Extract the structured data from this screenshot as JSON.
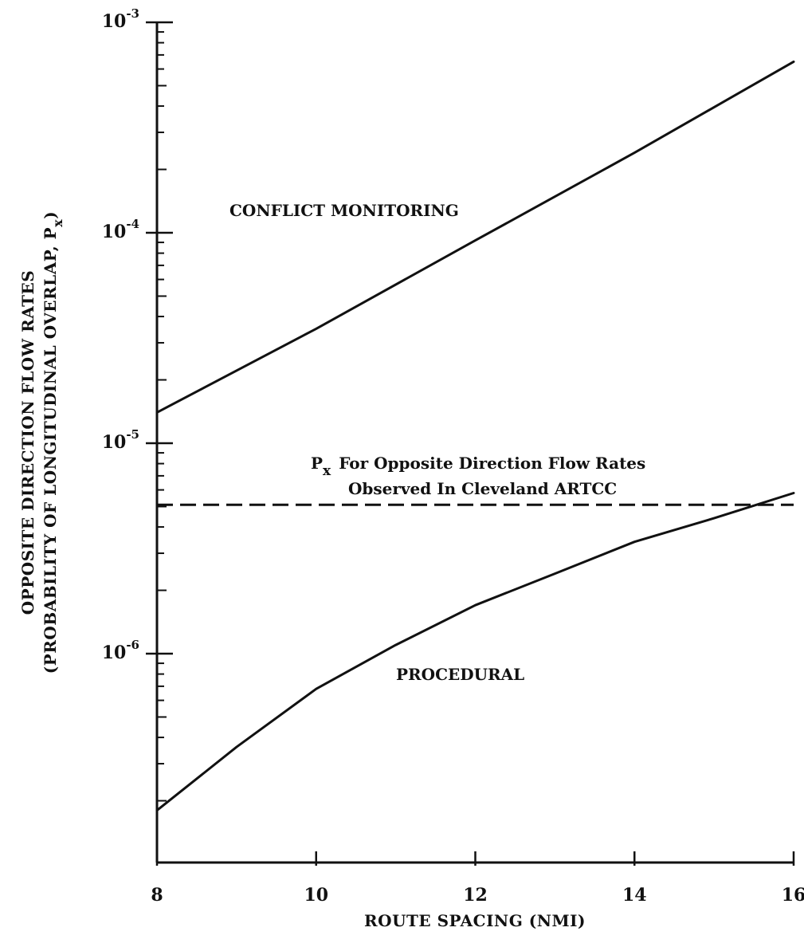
{
  "chart_data": {
    "type": "line",
    "title": "",
    "xlabel": "ROUTE SPACING (NMI)",
    "ylabel_line1": "OPPOSITE DIRECTION FLOW RATES",
    "ylabel_line2_prefix": "(PROBABILITY OF LONGITUDINAL OVERLAP, P",
    "ylabel_line2_sub": "x",
    "ylabel_line2_suffix": ")",
    "xlim": [
      8,
      16
    ],
    "ylim": [
      1e-07,
      0.001
    ],
    "yscale": "log",
    "x_ticks": [
      "8",
      "10",
      "12",
      "14",
      "16"
    ],
    "y_ticks": [
      {
        "base": "10",
        "exp": "-3",
        "value": 0.001
      },
      {
        "base": "10",
        "exp": "-4",
        "value": 0.0001
      },
      {
        "base": "10",
        "exp": "-5",
        "value": 1e-05
      },
      {
        "base": "10",
        "exp": "-6",
        "value": 1e-06
      }
    ],
    "series": [
      {
        "name": "CONFLICT MONITORING",
        "style": "solid",
        "x": [
          8,
          10,
          12,
          14,
          16
        ],
        "y": [
          1.4e-05,
          3.5e-05,
          9.2e-05,
          0.00024,
          0.00065
        ]
      },
      {
        "name": "PROCEDURAL",
        "style": "solid",
        "x": [
          8,
          9,
          10,
          11,
          12,
          13,
          14,
          15,
          16
        ],
        "y": [
          1.8e-07,
          3.6e-07,
          6.8e-07,
          1.1e-06,
          1.7e-06,
          2.4e-06,
          3.4e-06,
          4.4e-06,
          5.8e-06
        ]
      }
    ],
    "reference_line": {
      "style": "dashed",
      "y": 5.1e-06,
      "label_sym": "P",
      "label_sub": "x",
      "label_line1": "For Opposite Direction Flow Rates",
      "label_line2": "Observed In Cleveland ARTCC"
    },
    "grid": false,
    "legend": "none"
  }
}
